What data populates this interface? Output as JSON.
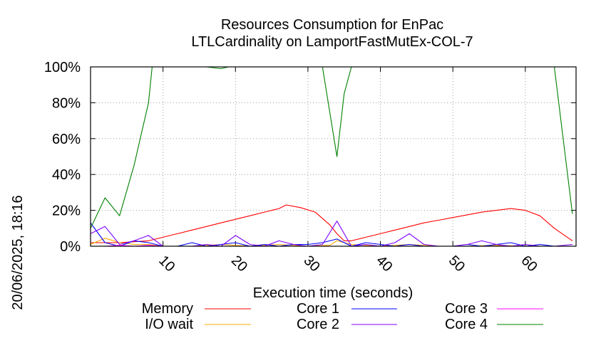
{
  "chart_data": {
    "type": "line",
    "title": "Resources Consumption for EnPac",
    "subtitle": "LTLCardinality on LamportFastMutEx-COL-7",
    "xlabel": "Execution time (seconds)",
    "ylabel": "",
    "timestamp": "20/06/2025, 18:16",
    "xlim": [
      0,
      67
    ],
    "ylim": [
      0,
      100
    ],
    "x_ticks": [
      10,
      20,
      30,
      40,
      50,
      60
    ],
    "y_ticks": [
      0,
      20,
      40,
      60,
      80,
      100
    ],
    "y_tick_labels": [
      "0%",
      "20%",
      "40%",
      "60%",
      "80%",
      "100%"
    ],
    "grid": true,
    "legend_placement": "bottom",
    "series": [
      {
        "name": "Memory",
        "color": "#ff0000",
        "points": [
          [
            0,
            2
          ],
          [
            2,
            2
          ],
          [
            4,
            2
          ],
          [
            6,
            2.5
          ],
          [
            8,
            3
          ],
          [
            10,
            5
          ],
          [
            12,
            7
          ],
          [
            14,
            9
          ],
          [
            16,
            11
          ],
          [
            18,
            13
          ],
          [
            20,
            15
          ],
          [
            22,
            17
          ],
          [
            24,
            19
          ],
          [
            26,
            21
          ],
          [
            27,
            23
          ],
          [
            29,
            21.5
          ],
          [
            31,
            19
          ],
          [
            33,
            12
          ],
          [
            34,
            7
          ],
          [
            35,
            3
          ],
          [
            36,
            3
          ],
          [
            38,
            5
          ],
          [
            40,
            7
          ],
          [
            42,
            9
          ],
          [
            44,
            11
          ],
          [
            46,
            13
          ],
          [
            48,
            14.5
          ],
          [
            50,
            16
          ],
          [
            52,
            17.5
          ],
          [
            54,
            19
          ],
          [
            56,
            20
          ],
          [
            58,
            21
          ],
          [
            60,
            20
          ],
          [
            62,
            17
          ],
          [
            64,
            10
          ],
          [
            66.5,
            3
          ]
        ]
      },
      {
        "name": "I/O wait",
        "color": "#ffa500",
        "points": [
          [
            0,
            1
          ],
          [
            2,
            4.5
          ],
          [
            4,
            2
          ],
          [
            6,
            1
          ],
          [
            8,
            1
          ],
          [
            10,
            0
          ],
          [
            14,
            0
          ],
          [
            18,
            1
          ],
          [
            22,
            0
          ],
          [
            26,
            1
          ],
          [
            30,
            0
          ],
          [
            33,
            0.5
          ],
          [
            34,
            3
          ],
          [
            36,
            1
          ],
          [
            40,
            0
          ],
          [
            44,
            1
          ],
          [
            48,
            0
          ],
          [
            52,
            0
          ],
          [
            56,
            0.5
          ],
          [
            60,
            0
          ],
          [
            64,
            0
          ],
          [
            66.5,
            0
          ]
        ]
      },
      {
        "name": "Core 1",
        "color": "#0000ff",
        "points": [
          [
            0,
            13
          ],
          [
            2,
            2
          ],
          [
            4,
            0
          ],
          [
            6,
            3
          ],
          [
            8,
            2
          ],
          [
            10,
            0
          ],
          [
            12,
            0
          ],
          [
            14,
            2
          ],
          [
            16,
            0
          ],
          [
            18,
            1
          ],
          [
            20,
            2
          ],
          [
            22,
            0
          ],
          [
            24,
            1
          ],
          [
            26,
            0
          ],
          [
            28,
            1
          ],
          [
            30,
            1
          ],
          [
            32,
            2
          ],
          [
            34,
            4
          ],
          [
            36,
            0
          ],
          [
            38,
            2
          ],
          [
            40,
            1
          ],
          [
            42,
            0
          ],
          [
            44,
            1
          ],
          [
            46,
            0
          ],
          [
            48,
            0
          ],
          [
            50,
            0
          ],
          [
            52,
            1
          ],
          [
            54,
            0
          ],
          [
            56,
            1
          ],
          [
            58,
            2
          ],
          [
            60,
            0
          ],
          [
            62,
            1
          ],
          [
            64,
            0
          ],
          [
            66.5,
            0
          ]
        ]
      },
      {
        "name": "Core 2",
        "color": "#8000ff",
        "points": [
          [
            0,
            7
          ],
          [
            2,
            11
          ],
          [
            4,
            1
          ],
          [
            6,
            3
          ],
          [
            8,
            6
          ],
          [
            10,
            0
          ],
          [
            12,
            0
          ],
          [
            14,
            0
          ],
          [
            16,
            1
          ],
          [
            18,
            0
          ],
          [
            20,
            6
          ],
          [
            22,
            1
          ],
          [
            24,
            0
          ],
          [
            26,
            3
          ],
          [
            28,
            1
          ],
          [
            30,
            0
          ],
          [
            32,
            1
          ],
          [
            34,
            14
          ],
          [
            36,
            0
          ],
          [
            38,
            1
          ],
          [
            40,
            0
          ],
          [
            42,
            2
          ],
          [
            44,
            7
          ],
          [
            46,
            1
          ],
          [
            48,
            0
          ],
          [
            50,
            0
          ],
          [
            52,
            1
          ],
          [
            54,
            3
          ],
          [
            56,
            1
          ],
          [
            58,
            0
          ],
          [
            60,
            1
          ],
          [
            62,
            0
          ],
          [
            64,
            0
          ],
          [
            66.5,
            1
          ]
        ]
      },
      {
        "name": "Core 3",
        "color": "#ff00ff",
        "points": [
          [
            0,
            0
          ],
          [
            2,
            0
          ],
          [
            4,
            0.5
          ],
          [
            6,
            0
          ],
          [
            8,
            0.5
          ],
          [
            10,
            0
          ],
          [
            14,
            0
          ],
          [
            18,
            0
          ],
          [
            22,
            0
          ],
          [
            26,
            0
          ],
          [
            30,
            0
          ],
          [
            34,
            0
          ],
          [
            38,
            0
          ],
          [
            42,
            0
          ],
          [
            46,
            0
          ],
          [
            50,
            0
          ],
          [
            54,
            0
          ],
          [
            58,
            0
          ],
          [
            62,
            0
          ],
          [
            66.5,
            0
          ]
        ]
      },
      {
        "name": "Core 4",
        "color": "#008000",
        "points": [
          [
            0,
            10
          ],
          [
            2,
            27
          ],
          [
            4,
            17
          ],
          [
            6,
            45
          ],
          [
            8,
            80
          ],
          [
            8.5,
            100
          ],
          [
            10,
            100
          ],
          [
            16,
            100
          ],
          [
            18,
            99
          ],
          [
            19,
            100
          ],
          [
            24,
            100
          ],
          [
            30,
            100
          ],
          [
            32,
            100
          ],
          [
            34,
            50
          ],
          [
            35,
            85
          ],
          [
            36,
            100
          ],
          [
            40,
            100
          ],
          [
            50,
            100
          ],
          [
            60,
            100
          ],
          [
            64,
            100
          ],
          [
            66.5,
            18
          ]
        ]
      }
    ]
  }
}
